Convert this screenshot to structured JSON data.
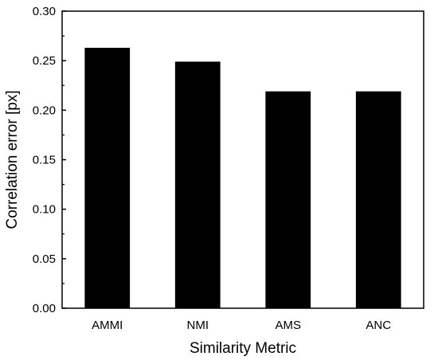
{
  "chart_data": {
    "type": "bar",
    "categories": [
      "AMMI",
      "NMI",
      "AMS",
      "ANC"
    ],
    "values": [
      0.263,
      0.249,
      0.219,
      0.219
    ],
    "xlabel": "Similarity Metric",
    "ylabel": "Correlation error [px]",
    "ylim": [
      0,
      0.3
    ],
    "yticks": [
      0.0,
      0.05,
      0.1,
      0.15,
      0.2,
      0.25,
      0.3
    ],
    "ytick_labels": [
      "0.00",
      "0.05",
      "0.10",
      "0.15",
      "0.20",
      "0.25",
      "0.30"
    ],
    "grid": false,
    "bar_color": "#000000"
  }
}
